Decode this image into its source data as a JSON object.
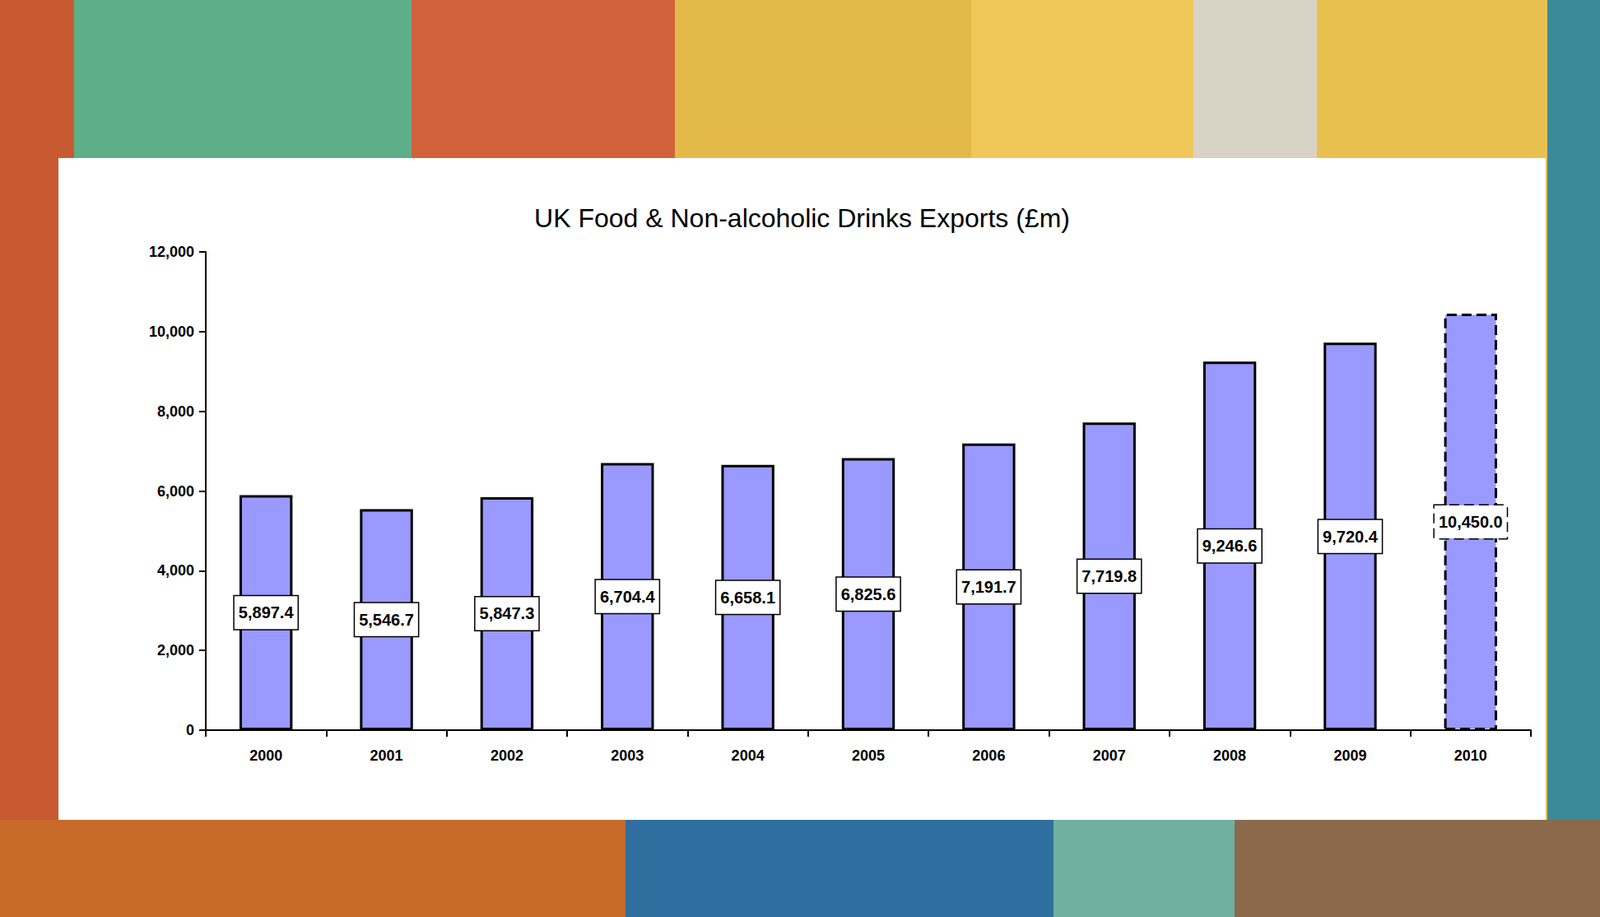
{
  "chart_data": {
    "type": "bar",
    "title": "UK Food & Non-alcoholic Drinks Exports (£m)",
    "categories": [
      "2000",
      "2001",
      "2002",
      "2003",
      "2004",
      "2005",
      "2006",
      "2007",
      "2008",
      "2009",
      "2010"
    ],
    "values": [
      5897.4,
      5546.7,
      5847.3,
      6704.4,
      6658.1,
      6825.6,
      7191.7,
      7719.8,
      9246.6,
      9720.4,
      10450.0
    ],
    "value_labels": [
      "5,897.4",
      "5,546.7",
      "5,847.3",
      "6,704.4",
      "6,658.1",
      "6,825.6",
      "7,191.7",
      "7,719.8",
      "9,246.6",
      "9,720.4",
      "10,450.0"
    ],
    "color": "#9999ff",
    "ylim": [
      0,
      12000
    ],
    "yticks": [
      0,
      {
        "value": 2000,
        "label": "2,000"
      },
      {
        "value": 4000,
        "label": "4,000"
      },
      {
        "value": 6000,
        "label": "6,000"
      },
      {
        "value": 8000,
        "label": "8,000"
      },
      {
        "value": 10000,
        "label": "10,000"
      },
      {
        "value": 12000,
        "label": "12,000"
      }
    ],
    "grid": false,
    "data_labels": true
  }
}
